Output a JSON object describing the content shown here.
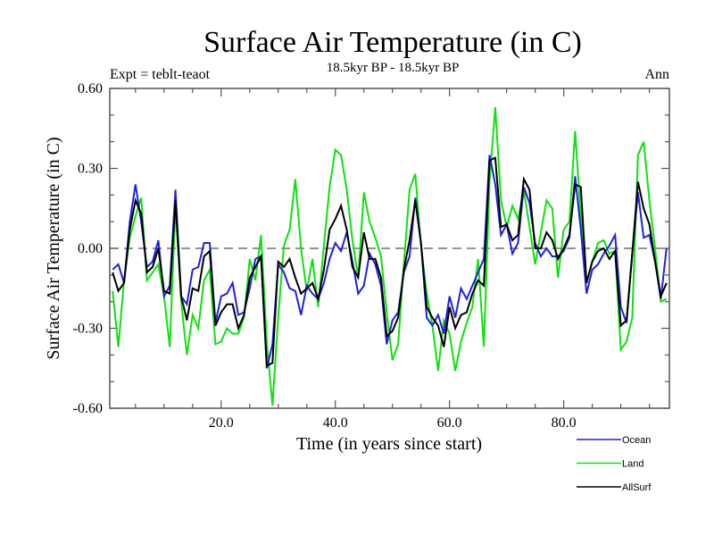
{
  "chart_data": {
    "type": "line",
    "title": "Surface Air Temperature (in C)",
    "subtitle": "18.5kyr BP - 18.5kyr BP",
    "left_annotation": "Expt = teblt-teaot",
    "right_annotation": "Ann",
    "xlabel": "Time (in years since start)",
    "ylabel": "Surface Air Temperature (in C)",
    "xlim": [
      0.5,
      98.5
    ],
    "ylim": [
      -0.6,
      0.6
    ],
    "x_major_ticks": [
      20,
      40,
      60,
      80
    ],
    "x_tick_labels": [
      "20.0",
      "40.0",
      "60.0",
      "80.0"
    ],
    "x_minor_step": 5,
    "y_major_ticks": [
      0.6,
      0.3,
      0.0,
      -0.3,
      -0.6
    ],
    "y_tick_labels": [
      "0.60",
      "0.30",
      "0.00",
      "-0.30",
      "-0.60"
    ],
    "y_minor_step": 0.1,
    "reference_line": {
      "y": 0.0,
      "style": "dashed"
    },
    "legend_position": "bottom-right",
    "x_start": 1,
    "series": [
      {
        "name": "Ocean",
        "color": "#2020e0",
        "values": [
          -0.08,
          -0.06,
          -0.13,
          0.1,
          0.24,
          0.1,
          -0.07,
          -0.05,
          0.03,
          -0.18,
          -0.14,
          0.22,
          -0.18,
          -0.21,
          -0.08,
          -0.07,
          0.02,
          0.02,
          -0.28,
          -0.18,
          -0.17,
          -0.13,
          -0.25,
          -0.24,
          -0.15,
          -0.04,
          -0.03,
          -0.45,
          -0.36,
          -0.06,
          -0.09,
          -0.15,
          -0.16,
          -0.25,
          -0.14,
          -0.17,
          -0.19,
          -0.13,
          -0.04,
          0.02,
          -0.01,
          0.06,
          -0.05,
          -0.17,
          -0.14,
          -0.02,
          -0.06,
          -0.14,
          -0.36,
          -0.27,
          -0.24,
          -0.09,
          -0.03,
          0.19,
          0.02,
          -0.26,
          -0.29,
          -0.25,
          -0.32,
          -0.18,
          -0.26,
          -0.15,
          -0.19,
          -0.14,
          -0.09,
          -0.04,
          0.35,
          0.24,
          0.05,
          0.09,
          -0.02,
          0.02,
          0.23,
          0.17,
          0.02,
          -0.03,
          0.0,
          -0.03,
          -0.03,
          -0.01,
          0.04,
          0.27,
          0.07,
          -0.17,
          -0.08,
          -0.06,
          -0.02,
          0.01,
          0.05,
          -0.22,
          -0.28,
          -0.02,
          0.21,
          0.04,
          0.05,
          -0.05,
          -0.19,
          0.0
        ]
      },
      {
        "name": "Land",
        "color": "#10e010",
        "values": [
          -0.16,
          -0.37,
          -0.12,
          0.04,
          0.12,
          0.19,
          -0.12,
          -0.09,
          -0.06,
          -0.18,
          -0.37,
          0.16,
          -0.2,
          -0.4,
          -0.25,
          -0.3,
          -0.12,
          -0.08,
          -0.36,
          -0.35,
          -0.3,
          -0.32,
          -0.32,
          -0.26,
          -0.04,
          -0.12,
          0.05,
          -0.35,
          -0.59,
          -0.26,
          0.01,
          0.07,
          0.26,
          0.0,
          -0.16,
          -0.04,
          -0.22,
          0.01,
          0.23,
          0.37,
          0.35,
          0.22,
          0.03,
          -0.11,
          0.21,
          0.1,
          0.04,
          -0.03,
          -0.24,
          -0.42,
          -0.36,
          -0.06,
          0.22,
          0.28,
          0.01,
          -0.17,
          -0.29,
          -0.46,
          -0.27,
          -0.32,
          -0.46,
          -0.35,
          -0.28,
          -0.22,
          -0.04,
          -0.37,
          0.25,
          0.53,
          0.18,
          0.08,
          0.16,
          0.11,
          0.22,
          0.08,
          -0.06,
          0.06,
          0.18,
          0.15,
          -0.11,
          0.07,
          0.1,
          0.44,
          0.12,
          -0.13,
          -0.05,
          0.02,
          0.03,
          -0.02,
          -0.01,
          -0.38,
          -0.35,
          -0.26,
          0.35,
          0.4,
          0.18,
          0.0,
          -0.2,
          -0.19
        ]
      },
      {
        "name": "AllSurf",
        "color": "#000000",
        "values": [
          -0.09,
          -0.16,
          -0.13,
          0.07,
          0.18,
          0.13,
          -0.09,
          -0.07,
          0.0,
          -0.16,
          -0.17,
          0.18,
          -0.18,
          -0.27,
          -0.15,
          -0.16,
          -0.03,
          -0.01,
          -0.29,
          -0.24,
          -0.21,
          -0.21,
          -0.3,
          -0.25,
          -0.11,
          -0.07,
          -0.03,
          -0.44,
          -0.43,
          -0.05,
          -0.07,
          -0.04,
          -0.11,
          -0.17,
          -0.15,
          -0.13,
          -0.19,
          -0.08,
          0.07,
          0.11,
          0.16,
          0.07,
          -0.07,
          -0.11,
          0.06,
          -0.04,
          -0.04,
          -0.11,
          -0.33,
          -0.31,
          -0.26,
          -0.08,
          0.03,
          0.18,
          0.02,
          -0.22,
          -0.26,
          -0.29,
          -0.37,
          -0.22,
          -0.3,
          -0.25,
          -0.24,
          -0.17,
          -0.12,
          -0.14,
          0.33,
          0.34,
          0.08,
          0.09,
          0.03,
          0.05,
          0.26,
          0.22,
          0.0,
          0.0,
          0.06,
          0.03,
          -0.04,
          0.0,
          0.05,
          0.24,
          0.23,
          -0.13,
          -0.05,
          -0.01,
          0.0,
          -0.04,
          -0.01,
          -0.29,
          -0.27,
          -0.02,
          0.25,
          0.15,
          0.09,
          -0.05,
          -0.18,
          -0.13
        ]
      }
    ]
  }
}
